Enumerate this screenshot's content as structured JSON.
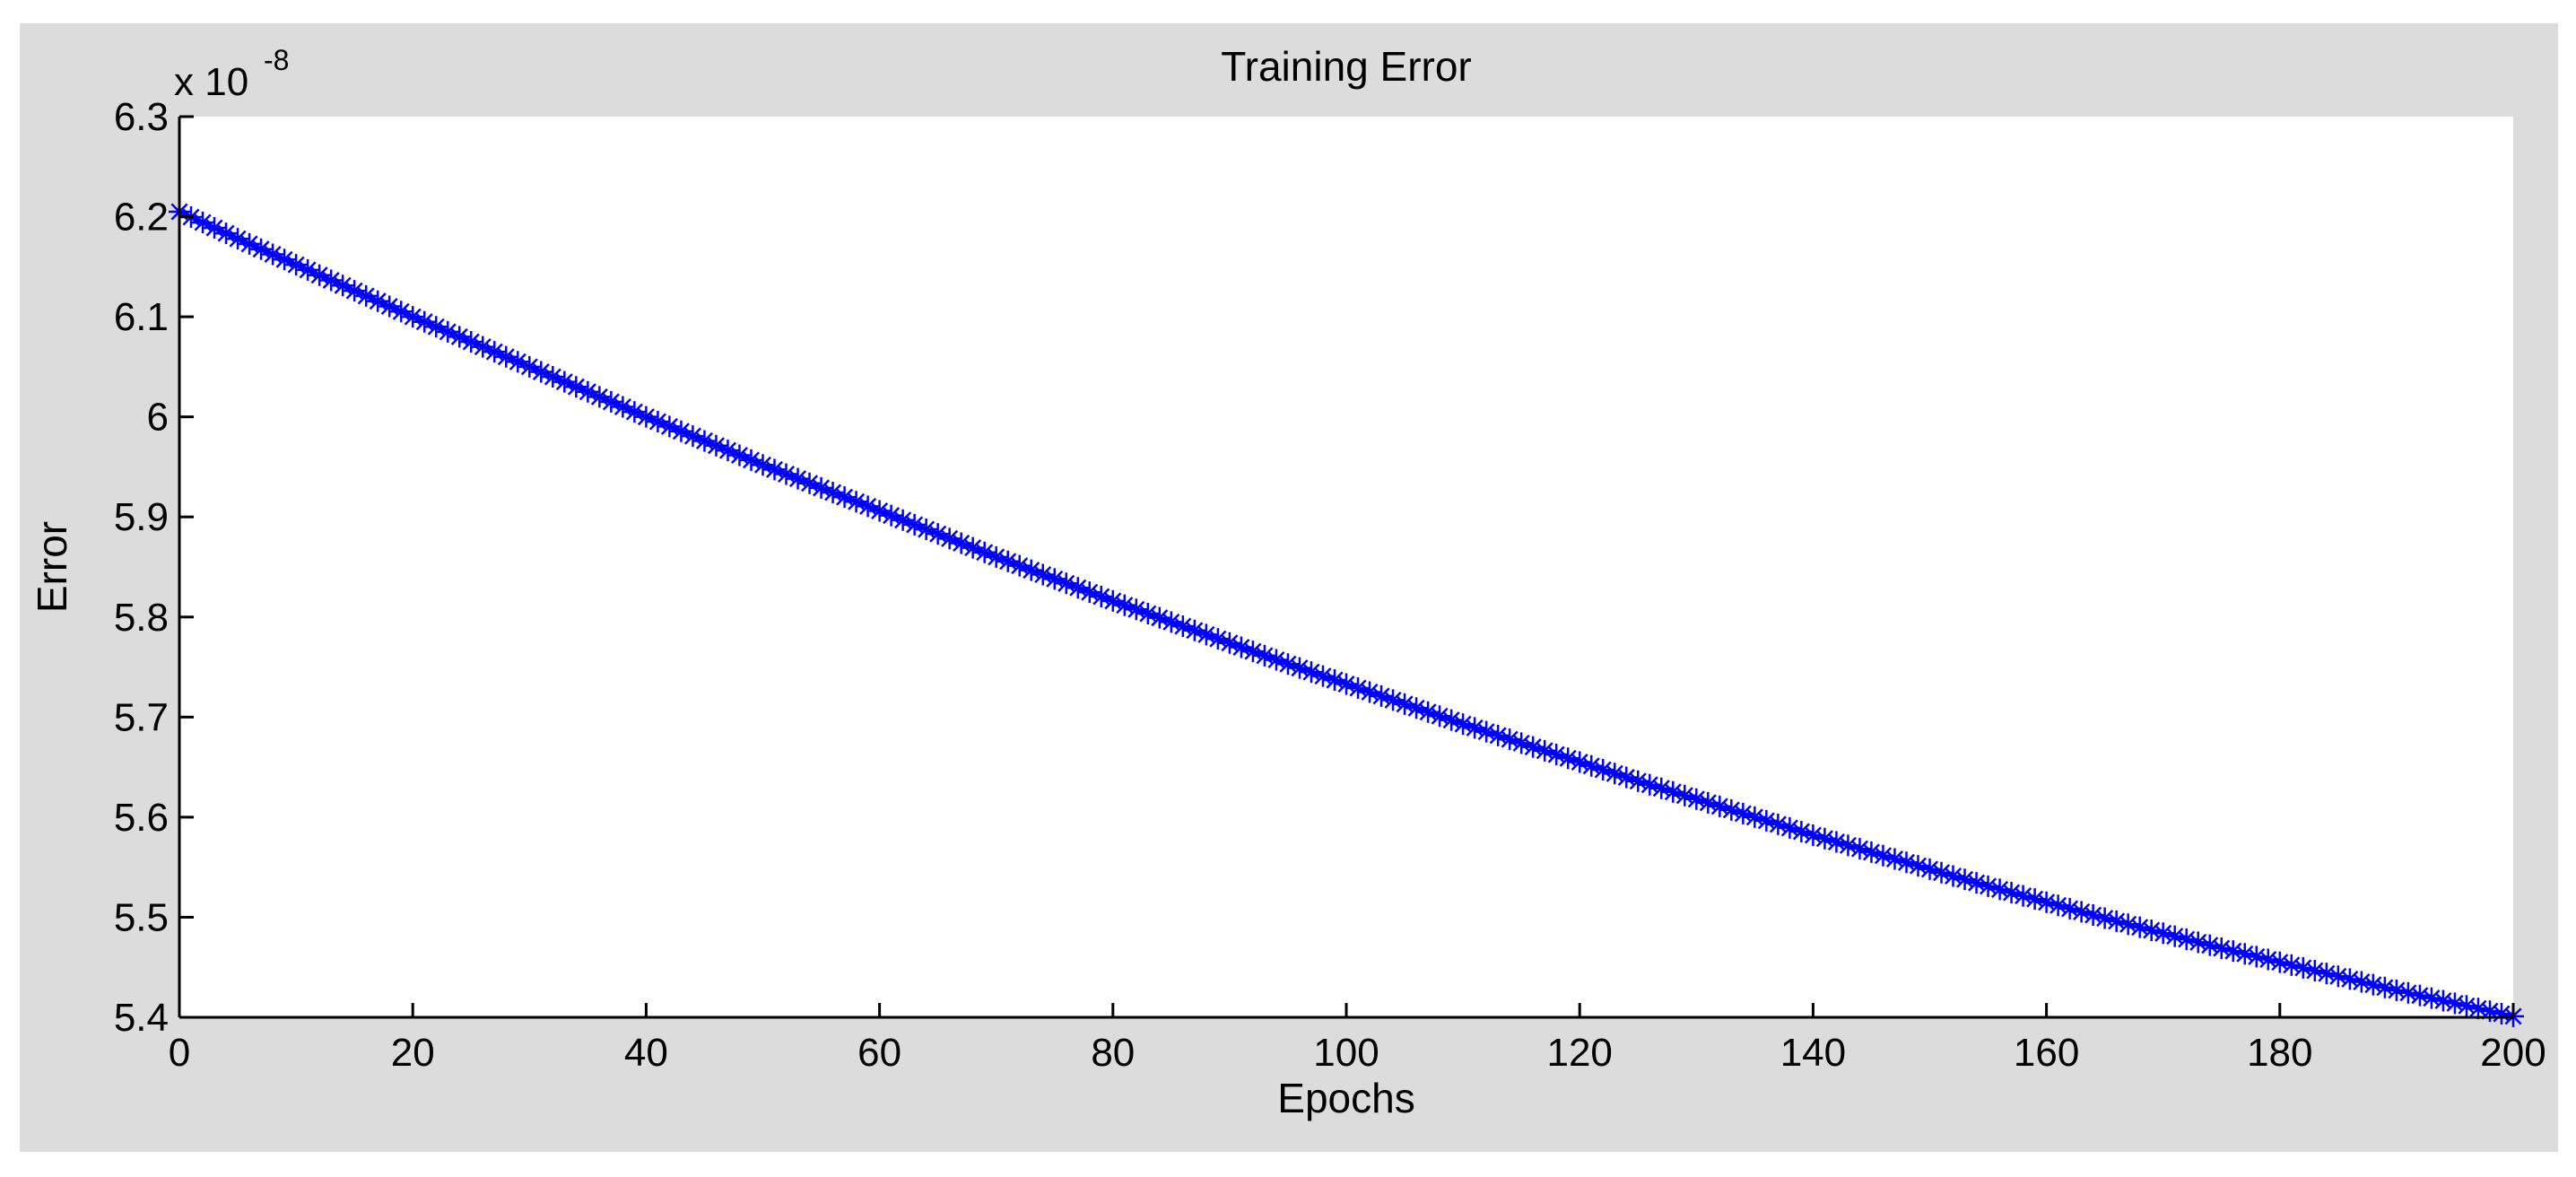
{
  "chart_data": {
    "type": "line",
    "title": "Training Error",
    "xlabel": "Epochs",
    "ylabel": "Error",
    "y_exponent_base": "x 10",
    "y_exponent_power": "-8",
    "xlim": [
      0,
      200
    ],
    "ylim": [
      5.4,
      6.3
    ],
    "x_ticks": [
      0,
      20,
      40,
      60,
      80,
      100,
      120,
      140,
      160,
      180,
      200
    ],
    "x_tick_labels": [
      "0",
      "20",
      "40",
      "60",
      "80",
      "100",
      "120",
      "140",
      "160",
      "180",
      "200"
    ],
    "y_ticks": [
      5.4,
      5.5,
      5.6,
      5.7,
      5.8,
      5.9,
      6.0,
      6.1,
      6.2,
      6.3
    ],
    "y_tick_labels": [
      "5.4",
      "5.5",
      "5.6",
      "5.7",
      "5.8",
      "5.9",
      "6",
      "6.1",
      "6.2",
      "6.3"
    ],
    "grid": false,
    "marker": "asterisk",
    "line_color": "#0000ff",
    "series": [
      {
        "x": [
          0,
          5,
          10,
          15,
          20,
          25,
          30,
          35,
          40,
          45,
          50,
          55,
          60,
          65,
          70,
          75,
          80,
          85,
          90,
          95,
          100,
          105,
          110,
          115,
          120,
          125,
          130,
          135,
          140,
          145,
          150,
          155,
          160,
          165,
          170,
          175,
          180,
          185,
          190,
          195,
          200
        ],
        "values": [
          6.205,
          6.178,
          6.152,
          6.126,
          6.1,
          6.075,
          6.05,
          6.025,
          6.0,
          5.976,
          5.952,
          5.929,
          5.906,
          5.883,
          5.86,
          5.838,
          5.816,
          5.795,
          5.774,
          5.753,
          5.733,
          5.713,
          5.693,
          5.674,
          5.655,
          5.636,
          5.618,
          5.6,
          5.582,
          5.565,
          5.548,
          5.531,
          5.515,
          5.499,
          5.484,
          5.469,
          5.455,
          5.441,
          5.427,
          5.414,
          5.401
        ]
      }
    ]
  }
}
